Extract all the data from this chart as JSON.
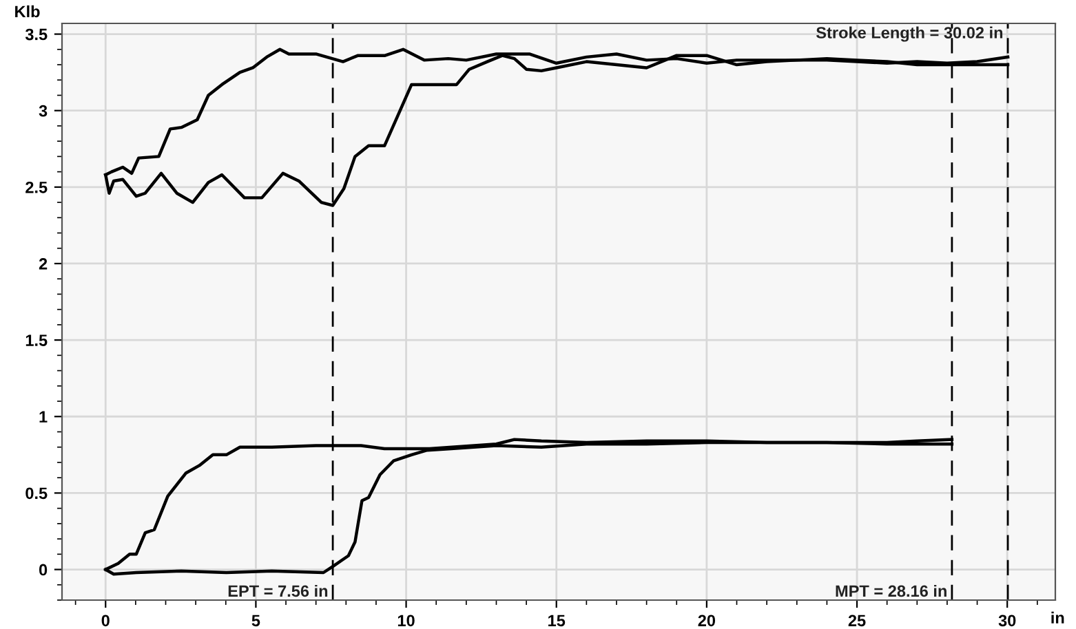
{
  "chart_data": {
    "type": "line",
    "xlabel": "in",
    "ylabel": "Klb",
    "series": [
      {
        "color": "#000000",
        "x": [
          0,
          0.2,
          0.57,
          0.87,
          1.1,
          1.77,
          2.15,
          2.52,
          3.05,
          3.42,
          3.87,
          4.47,
          4.9,
          5.36,
          5.8,
          6.1,
          7.0,
          7.9,
          8.4,
          9.3,
          9.9,
          10.6,
          11.4,
          12,
          13,
          14.1,
          15,
          16,
          17,
          18,
          19,
          20,
          21,
          22,
          23,
          24,
          25,
          26,
          27,
          28,
          29,
          30.02
        ],
        "values": [
          2.58,
          2.6,
          2.63,
          2.59,
          2.69,
          2.7,
          2.88,
          2.89,
          2.94,
          3.1,
          3.17,
          3.25,
          3.28,
          3.35,
          3.4,
          3.37,
          3.37,
          3.32,
          3.36,
          3.36,
          3.4,
          3.33,
          3.34,
          3.33,
          3.37,
          3.37,
          3.31,
          3.35,
          3.37,
          3.33,
          3.34,
          3.31,
          3.33,
          3.33,
          3.33,
          3.33,
          3.32,
          3.31,
          3.32,
          3.31,
          3.32,
          3.35
        ]
      },
      {
        "color": "#000000",
        "x": [
          30.02,
          29,
          28,
          27,
          26,
          25,
          24,
          23,
          22,
          21,
          20,
          19,
          18,
          17,
          16,
          15,
          14.5,
          14,
          13.6,
          13.2,
          12.7,
          12.1,
          11.68,
          10.93,
          10.18,
          9.73,
          9.28,
          8.75,
          8.3,
          7.93,
          7.56,
          7.18,
          6.43,
          5.9,
          5.2,
          4.62,
          3.87,
          3.42,
          2.9,
          2.37,
          1.85,
          1.32,
          1.02,
          0.57,
          0.27,
          0.12,
          0
        ],
        "values": [
          3.3,
          3.3,
          3.3,
          3.3,
          3.32,
          3.33,
          3.34,
          3.33,
          3.32,
          3.3,
          3.36,
          3.36,
          3.28,
          3.3,
          3.32,
          3.28,
          3.26,
          3.27,
          3.34,
          3.36,
          3.32,
          3.27,
          3.17,
          3.17,
          3.17,
          2.97,
          2.77,
          2.77,
          2.7,
          2.49,
          2.38,
          2.4,
          2.54,
          2.59,
          2.43,
          2.43,
          2.58,
          2.53,
          2.4,
          2.46,
          2.59,
          2.46,
          2.44,
          2.55,
          2.54,
          2.46,
          2.58
        ]
      },
      {
        "color": "#000000",
        "x": [
          0,
          0.42,
          0.8,
          1.02,
          1.32,
          1.62,
          2.07,
          2.67,
          3.12,
          3.57,
          4.02,
          4.47,
          5.53,
          7.0,
          8.5,
          9.28,
          10.78,
          13,
          13.6,
          14.5,
          16,
          18,
          20,
          22,
          24,
          26,
          27,
          28.16
        ],
        "values": [
          0,
          0.04,
          0.1,
          0.1,
          0.24,
          0.26,
          0.48,
          0.63,
          0.68,
          0.75,
          0.75,
          0.8,
          0.8,
          0.81,
          0.81,
          0.79,
          0.79,
          0.82,
          0.85,
          0.84,
          0.83,
          0.84,
          0.84,
          0.83,
          0.83,
          0.83,
          0.84,
          0.85
        ]
      },
      {
        "color": "#000000",
        "x": [
          28.16,
          26,
          24,
          22,
          20,
          18,
          16,
          14.5,
          13,
          11.5,
          10.7,
          10.18,
          9.58,
          9.13,
          8.75,
          8.53,
          8.3,
          8.08,
          7.56,
          7.25,
          5.53,
          4.02,
          2.52,
          1.02,
          0.27,
          0
        ],
        "values": [
          0.82,
          0.82,
          0.83,
          0.83,
          0.83,
          0.82,
          0.82,
          0.8,
          0.81,
          0.79,
          0.78,
          0.75,
          0.71,
          0.62,
          0.47,
          0.45,
          0.18,
          0.09,
          0.02,
          -0.02,
          -0.01,
          -0.02,
          -0.01,
          -0.02,
          -0.03,
          0
        ]
      }
    ],
    "xlim": [
      -1.45,
      31.6
    ],
    "ylim": [
      -0.2,
      3.57
    ],
    "xticks": [
      0,
      5,
      10,
      15,
      20,
      25,
      30
    ],
    "yticks": [
      0,
      0.5,
      1,
      1.5,
      2,
      2.5,
      3,
      3.5
    ],
    "grid": true,
    "legend": false,
    "marker": "none",
    "line_style": "solid",
    "ref_lines": [
      {
        "axis": "x",
        "value": 7.56,
        "color": "#000000",
        "line_style": "dashed"
      },
      {
        "axis": "x",
        "value": 28.16,
        "color": "#000000",
        "line_style": "dashed"
      },
      {
        "axis": "x",
        "value": 30.02,
        "color": "#000000",
        "line_style": "dashed"
      }
    ],
    "annotations": [
      {
        "text": "EPT = 7.56 in",
        "x": 7.56,
        "y": -0.15
      },
      {
        "text": "MPT = 28.16 in",
        "x": 28.16,
        "y": -0.15
      },
      {
        "text": "Stroke Length = 30.02 in",
        "x": 30.02,
        "y": 3.5
      }
    ]
  }
}
